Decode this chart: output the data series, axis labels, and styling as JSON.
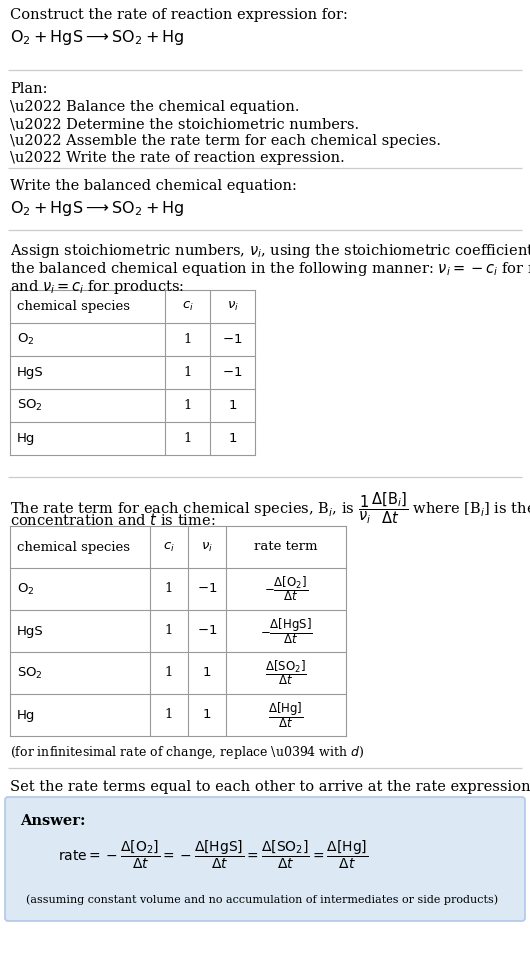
{
  "bg_color": "#ffffff",
  "text_color": "#000000",
  "answer_bg": "#dce9f5",
  "answer_border": "#b0c8e8",
  "section1_title": "Construct the rate of reaction expression for:",
  "section1_eq": "$\\mathrm{O_2 + HgS \\longrightarrow SO_2 + Hg}$",
  "plan_title": "Plan:",
  "plan_items": [
    "\\u2022 Balance the chemical equation.",
    "\\u2022 Determine the stoichiometric numbers.",
    "\\u2022 Assemble the rate term for each chemical species.",
    "\\u2022 Write the rate of reaction expression."
  ],
  "balanced_title": "Write the balanced chemical equation:",
  "balanced_eq": "$\\mathrm{O_2 + HgS \\longrightarrow SO_2 + Hg}$",
  "stoich_intro_line1": "Assign stoichiometric numbers, $\\nu_i$, using the stoichiometric coefficients, $c_i$, from",
  "stoich_intro_line2": "the balanced chemical equation in the following manner: $\\nu_i = -c_i$ for reactants",
  "stoich_intro_line3": "and $\\nu_i = c_i$ for products:",
  "table1_headers": [
    "chemical species",
    "$c_i$",
    "$\\nu_i$"
  ],
  "table1_rows": [
    [
      "$\\mathrm{O_2}$",
      "1",
      "$-1$"
    ],
    [
      "HgS",
      "1",
      "$-1$"
    ],
    [
      "$\\mathrm{SO_2}$",
      "1",
      "1"
    ],
    [
      "Hg",
      "1",
      "1"
    ]
  ],
  "rate_intro_line1": "The rate term for each chemical species, B$_i$, is $\\dfrac{1}{\\nu_i}\\dfrac{\\Delta[\\mathrm{B}_i]}{\\Delta t}$ where [B$_i$] is the amount",
  "rate_intro_line2": "concentration and $t$ is time:",
  "table2_headers": [
    "chemical species",
    "$c_i$",
    "$\\nu_i$",
    "rate term"
  ],
  "table2_rows": [
    [
      "$\\mathrm{O_2}$",
      "1",
      "$-1$",
      "$-\\dfrac{\\Delta[\\mathrm{O_2}]}{\\Delta t}$"
    ],
    [
      "HgS",
      "1",
      "$-1$",
      "$-\\dfrac{\\Delta[\\mathrm{HgS}]}{\\Delta t}$"
    ],
    [
      "$\\mathrm{SO_2}$",
      "1",
      "1",
      "$\\dfrac{\\Delta[\\mathrm{SO_2}]}{\\Delta t}$"
    ],
    [
      "Hg",
      "1",
      "1",
      "$\\dfrac{\\Delta[\\mathrm{Hg}]}{\\Delta t}$"
    ]
  ],
  "infinitesimal_note": "(for infinitesimal rate of change, replace \\u0394 with $d$)",
  "set_rate_intro": "Set the rate terms equal to each other to arrive at the rate expression:",
  "answer_label": "Answer:",
  "answer_eq": "$\\mathrm{rate} = -\\dfrac{\\Delta[\\mathrm{O_2}]}{\\Delta t} = -\\dfrac{\\Delta[\\mathrm{HgS}]}{\\Delta t} = \\dfrac{\\Delta[\\mathrm{SO_2}]}{\\Delta t} = \\dfrac{\\Delta[\\mathrm{Hg}]}{\\Delta t}$",
  "answer_note": "(assuming constant volume and no accumulation of intermediates or side products)",
  "divider_color": "#cccccc",
  "table_line_color": "#999999",
  "fs_body": 10.5,
  "fs_small": 9.5,
  "fs_eq": 11.5
}
